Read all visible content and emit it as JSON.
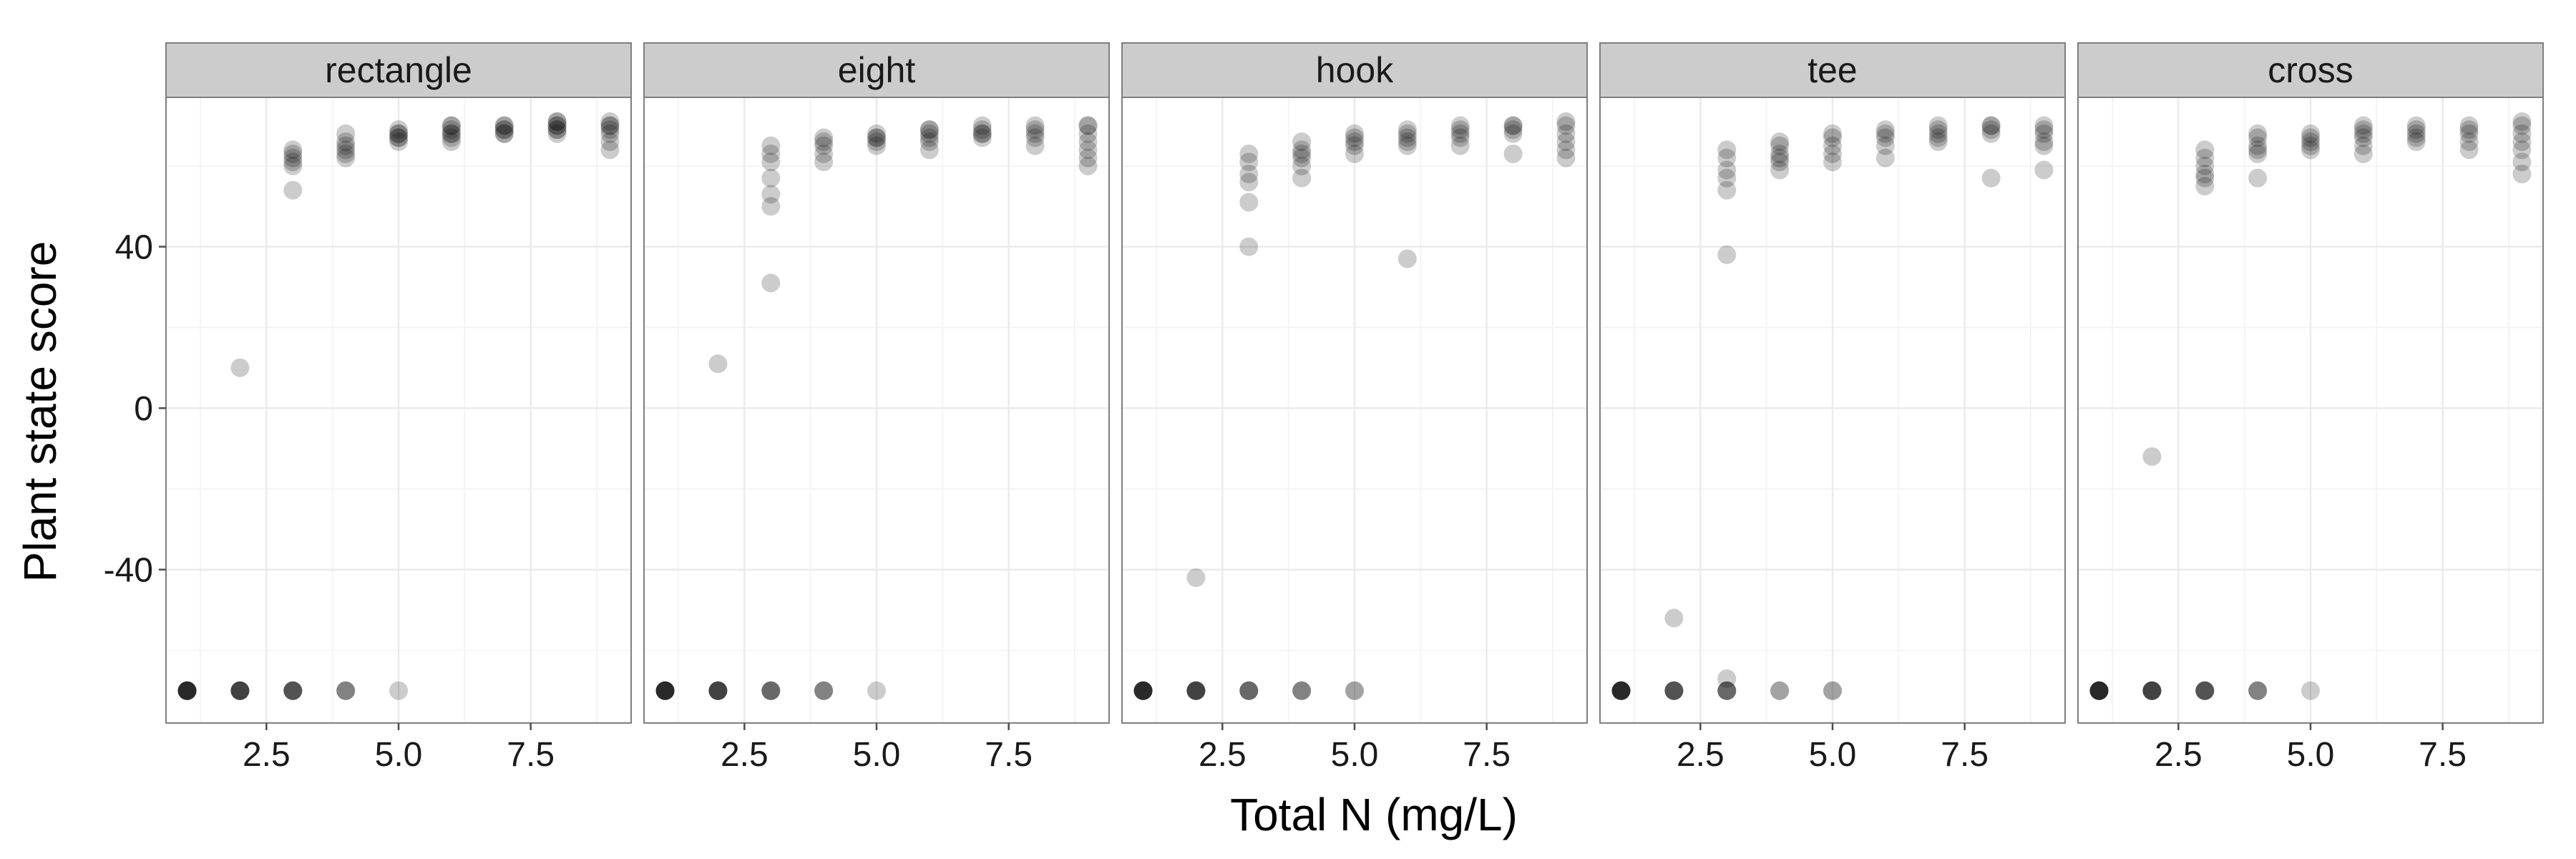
{
  "chart_data": {
    "type": "scatter",
    "layout": "faceted-1x5",
    "xlabel": "Total N (mg/L)",
    "ylabel": "Plant state score",
    "xlim": [
      0.6,
      9.4
    ],
    "ylim": [
      -78,
      77
    ],
    "xticks": [
      2.5,
      5.0,
      7.5
    ],
    "xtick_labels": [
      "2.5",
      "5.0",
      "7.5"
    ],
    "yticks": [
      -40,
      0,
      40
    ],
    "ytick_labels": [
      "-40",
      "0",
      "40"
    ],
    "grid": true,
    "point_color": "#000000",
    "point_alpha": 0.2,
    "panel_strip_color": "#cccccc",
    "panel_border_color": "#7f7f7f",
    "grid_color": "#ebebeb",
    "panels": [
      {
        "title": "rectangle",
        "points": [
          [
            1,
            -70
          ],
          [
            1,
            -70
          ],
          [
            1,
            -70
          ],
          [
            1,
            -70
          ],
          [
            1,
            -70
          ],
          [
            1,
            -70
          ],
          [
            1,
            -70
          ],
          [
            1,
            -70
          ],
          [
            2,
            -70
          ],
          [
            2,
            -70
          ],
          [
            2,
            -70
          ],
          [
            2,
            -70
          ],
          [
            2,
            -70
          ],
          [
            2,
            -70
          ],
          [
            2,
            10
          ],
          [
            3,
            -70
          ],
          [
            3,
            -70
          ],
          [
            3,
            -70
          ],
          [
            3,
            -70
          ],
          [
            3,
            -70
          ],
          [
            3,
            54
          ],
          [
            3,
            60
          ],
          [
            3,
            61
          ],
          [
            3,
            62
          ],
          [
            3,
            63
          ],
          [
            3,
            64
          ],
          [
            4,
            -70
          ],
          [
            4,
            -70
          ],
          [
            4,
            -70
          ],
          [
            4,
            62
          ],
          [
            4,
            63
          ],
          [
            4,
            64
          ],
          [
            4,
            65
          ],
          [
            4,
            66
          ],
          [
            4,
            68
          ],
          [
            5,
            -70
          ],
          [
            5,
            66
          ],
          [
            5,
            67
          ],
          [
            5,
            67
          ],
          [
            5,
            68
          ],
          [
            5,
            68
          ],
          [
            5,
            69
          ],
          [
            6,
            66
          ],
          [
            6,
            67
          ],
          [
            6,
            68
          ],
          [
            6,
            68
          ],
          [
            6,
            69
          ],
          [
            6,
            70
          ],
          [
            6,
            70
          ],
          [
            7,
            68
          ],
          [
            7,
            68
          ],
          [
            7,
            69
          ],
          [
            7,
            69
          ],
          [
            7,
            70
          ],
          [
            7,
            70
          ],
          [
            8,
            68
          ],
          [
            8,
            69
          ],
          [
            8,
            69
          ],
          [
            8,
            70
          ],
          [
            8,
            70
          ],
          [
            8,
            71
          ],
          [
            8,
            71
          ],
          [
            9,
            64
          ],
          [
            9,
            66
          ],
          [
            9,
            68
          ],
          [
            9,
            69
          ],
          [
            9,
            70
          ],
          [
            9,
            70
          ],
          [
            9,
            71
          ]
        ]
      },
      {
        "title": "eight",
        "points": [
          [
            1,
            -70
          ],
          [
            1,
            -70
          ],
          [
            1,
            -70
          ],
          [
            1,
            -70
          ],
          [
            1,
            -70
          ],
          [
            1,
            -70
          ],
          [
            1,
            -70
          ],
          [
            1,
            -70
          ],
          [
            2,
            -70
          ],
          [
            2,
            -70
          ],
          [
            2,
            -70
          ],
          [
            2,
            -70
          ],
          [
            2,
            -70
          ],
          [
            2,
            -70
          ],
          [
            2,
            11
          ],
          [
            3,
            -70
          ],
          [
            3,
            -70
          ],
          [
            3,
            -70
          ],
          [
            3,
            -70
          ],
          [
            3,
            31
          ],
          [
            3,
            50
          ],
          [
            3,
            53
          ],
          [
            3,
            57
          ],
          [
            3,
            61
          ],
          [
            3,
            63
          ],
          [
            3,
            65
          ],
          [
            4,
            -70
          ],
          [
            4,
            -70
          ],
          [
            4,
            -70
          ],
          [
            4,
            61
          ],
          [
            4,
            63
          ],
          [
            4,
            65
          ],
          [
            4,
            66
          ],
          [
            4,
            67
          ],
          [
            5,
            -70
          ],
          [
            5,
            65
          ],
          [
            5,
            66
          ],
          [
            5,
            67
          ],
          [
            5,
            67
          ],
          [
            5,
            68
          ],
          [
            6,
            64
          ],
          [
            6,
            66
          ],
          [
            6,
            67
          ],
          [
            6,
            68
          ],
          [
            6,
            69
          ],
          [
            6,
            69
          ],
          [
            7,
            67
          ],
          [
            7,
            68
          ],
          [
            7,
            68
          ],
          [
            7,
            69
          ],
          [
            7,
            70
          ],
          [
            8,
            65
          ],
          [
            8,
            67
          ],
          [
            8,
            68
          ],
          [
            8,
            69
          ],
          [
            8,
            70
          ],
          [
            9,
            60
          ],
          [
            9,
            62
          ],
          [
            9,
            64
          ],
          [
            9,
            66
          ],
          [
            9,
            68
          ],
          [
            9,
            70
          ],
          [
            9,
            70
          ]
        ]
      },
      {
        "title": "hook",
        "points": [
          [
            1,
            -70
          ],
          [
            1,
            -70
          ],
          [
            1,
            -70
          ],
          [
            1,
            -70
          ],
          [
            1,
            -70
          ],
          [
            1,
            -70
          ],
          [
            1,
            -70
          ],
          [
            1,
            -70
          ],
          [
            2,
            -70
          ],
          [
            2,
            -70
          ],
          [
            2,
            -70
          ],
          [
            2,
            -70
          ],
          [
            2,
            -70
          ],
          [
            2,
            -70
          ],
          [
            2,
            -42
          ],
          [
            3,
            -70
          ],
          [
            3,
            -70
          ],
          [
            3,
            -70
          ],
          [
            3,
            -70
          ],
          [
            3,
            40
          ],
          [
            3,
            51
          ],
          [
            3,
            56
          ],
          [
            3,
            58
          ],
          [
            3,
            61
          ],
          [
            3,
            63
          ],
          [
            4,
            -70
          ],
          [
            4,
            -70
          ],
          [
            4,
            -70
          ],
          [
            4,
            57
          ],
          [
            4,
            60
          ],
          [
            4,
            62
          ],
          [
            4,
            63
          ],
          [
            4,
            64
          ],
          [
            4,
            66
          ],
          [
            5,
            -70
          ],
          [
            5,
            -70
          ],
          [
            5,
            63
          ],
          [
            5,
            65
          ],
          [
            5,
            66
          ],
          [
            5,
            67
          ],
          [
            5,
            68
          ],
          [
            6,
            37
          ],
          [
            6,
            65
          ],
          [
            6,
            66
          ],
          [
            6,
            67
          ],
          [
            6,
            68
          ],
          [
            6,
            69
          ],
          [
            7,
            65
          ],
          [
            7,
            67
          ],
          [
            7,
            68
          ],
          [
            7,
            69
          ],
          [
            7,
            70
          ],
          [
            8,
            63
          ],
          [
            8,
            68
          ],
          [
            8,
            69
          ],
          [
            8,
            70
          ],
          [
            8,
            70
          ],
          [
            9,
            62
          ],
          [
            9,
            64
          ],
          [
            9,
            66
          ],
          [
            9,
            68
          ],
          [
            9,
            70
          ],
          [
            9,
            71
          ]
        ]
      },
      {
        "title": "tee",
        "points": [
          [
            1,
            -70
          ],
          [
            1,
            -70
          ],
          [
            1,
            -70
          ],
          [
            1,
            -70
          ],
          [
            1,
            -70
          ],
          [
            1,
            -70
          ],
          [
            1,
            -70
          ],
          [
            1,
            -70
          ],
          [
            2,
            -70
          ],
          [
            2,
            -70
          ],
          [
            2,
            -70
          ],
          [
            2,
            -70
          ],
          [
            2,
            -70
          ],
          [
            2,
            -52
          ],
          [
            3,
            -70
          ],
          [
            3,
            -70
          ],
          [
            3,
            -70
          ],
          [
            3,
            -70
          ],
          [
            3,
            -67
          ],
          [
            3,
            38
          ],
          [
            3,
            54
          ],
          [
            3,
            57
          ],
          [
            3,
            59
          ],
          [
            3,
            62
          ],
          [
            3,
            64
          ],
          [
            4,
            -70
          ],
          [
            4,
            -70
          ],
          [
            4,
            59
          ],
          [
            4,
            61
          ],
          [
            4,
            62
          ],
          [
            4,
            63
          ],
          [
            4,
            65
          ],
          [
            4,
            66
          ],
          [
            5,
            -70
          ],
          [
            5,
            -70
          ],
          [
            5,
            61
          ],
          [
            5,
            63
          ],
          [
            5,
            65
          ],
          [
            5,
            67
          ],
          [
            5,
            68
          ],
          [
            6,
            62
          ],
          [
            6,
            65
          ],
          [
            6,
            67
          ],
          [
            6,
            68
          ],
          [
            6,
            69
          ],
          [
            7,
            66
          ],
          [
            7,
            67
          ],
          [
            7,
            68
          ],
          [
            7,
            69
          ],
          [
            7,
            70
          ],
          [
            8,
            57
          ],
          [
            8,
            68
          ],
          [
            8,
            69
          ],
          [
            8,
            70
          ],
          [
            8,
            70
          ],
          [
            9,
            59
          ],
          [
            9,
            65
          ],
          [
            9,
            66
          ],
          [
            9,
            68
          ],
          [
            9,
            69
          ],
          [
            9,
            70
          ]
        ]
      },
      {
        "title": "cross",
        "points": [
          [
            1,
            -70
          ],
          [
            1,
            -70
          ],
          [
            1,
            -70
          ],
          [
            1,
            -70
          ],
          [
            1,
            -70
          ],
          [
            1,
            -70
          ],
          [
            1,
            -70
          ],
          [
            1,
            -70
          ],
          [
            2,
            -70
          ],
          [
            2,
            -70
          ],
          [
            2,
            -70
          ],
          [
            2,
            -70
          ],
          [
            2,
            -70
          ],
          [
            2,
            -70
          ],
          [
            2,
            -12
          ],
          [
            3,
            -70
          ],
          [
            3,
            -70
          ],
          [
            3,
            -70
          ],
          [
            3,
            -70
          ],
          [
            3,
            -70
          ],
          [
            3,
            55
          ],
          [
            3,
            57
          ],
          [
            3,
            58
          ],
          [
            3,
            60
          ],
          [
            3,
            62
          ],
          [
            3,
            64
          ],
          [
            4,
            -70
          ],
          [
            4,
            -70
          ],
          [
            4,
            -70
          ],
          [
            4,
            57
          ],
          [
            4,
            63
          ],
          [
            4,
            64
          ],
          [
            4,
            65
          ],
          [
            4,
            67
          ],
          [
            4,
            68
          ],
          [
            5,
            -70
          ],
          [
            5,
            64
          ],
          [
            5,
            65
          ],
          [
            5,
            66
          ],
          [
            5,
            67
          ],
          [
            5,
            68
          ],
          [
            6,
            63
          ],
          [
            6,
            65
          ],
          [
            6,
            67
          ],
          [
            6,
            68
          ],
          [
            6,
            69
          ],
          [
            6,
            70
          ],
          [
            7,
            66
          ],
          [
            7,
            67
          ],
          [
            7,
            68
          ],
          [
            7,
            69
          ],
          [
            7,
            70
          ],
          [
            8,
            64
          ],
          [
            8,
            66
          ],
          [
            8,
            68
          ],
          [
            8,
            69
          ],
          [
            8,
            70
          ],
          [
            9,
            58
          ],
          [
            9,
            61
          ],
          [
            9,
            64
          ],
          [
            9,
            66
          ],
          [
            9,
            68
          ],
          [
            9,
            70
          ],
          [
            9,
            71
          ]
        ]
      }
    ]
  }
}
